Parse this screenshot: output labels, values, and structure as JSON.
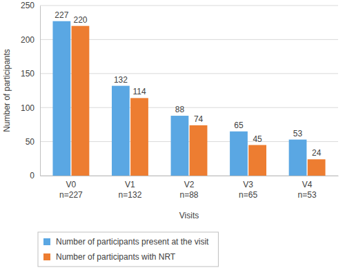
{
  "chart_data": {
    "type": "bar",
    "y_label": "Number of participants",
    "x_label": "Visits",
    "categories": [
      "V0\nn=227",
      "V1\nn=132",
      "V2\nn=88",
      "V3\nn=65",
      "V4\nn=53"
    ],
    "series": [
      {
        "name": "Number of participants present at the visit",
        "color": "#5aa7e3",
        "values": [
          227,
          132,
          88,
          65,
          53
        ]
      },
      {
        "name": "Number of participants with NRT",
        "color": "#ed7d31",
        "values": [
          220,
          114,
          74,
          45,
          24
        ]
      }
    ],
    "ylim": [
      0,
      250
    ],
    "yticks": [
      0,
      50,
      100,
      150,
      200,
      250
    ],
    "grid": true,
    "data_labels": true,
    "legend": "bottom"
  }
}
